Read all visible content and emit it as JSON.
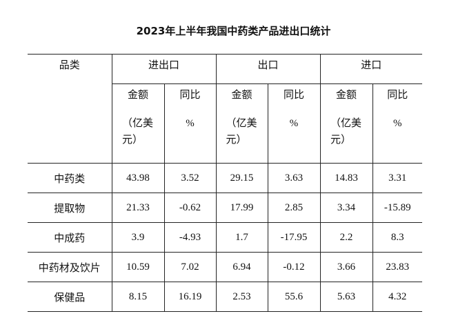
{
  "title": "2023年上半年我国中药类产品进出口统计",
  "table": {
    "corner": "品类",
    "groups": [
      "进出口",
      "出口",
      "进口"
    ],
    "subheaders": [
      {
        "label": "金额",
        "unit": "（亿美元）"
      },
      {
        "label": "同比",
        "unit": "%"
      },
      {
        "label": "金额",
        "unit": "（亿美元）"
      },
      {
        "label": "同比",
        "unit": "%"
      },
      {
        "label": "金额",
        "unit": "（亿美元）"
      },
      {
        "label": "同比",
        "unit": "%"
      }
    ],
    "rows": [
      [
        "中药类",
        "43.98",
        "3.52",
        "29.15",
        "3.63",
        "14.83",
        "3.31"
      ],
      [
        "提取物",
        "21.33",
        "-0.62",
        "17.99",
        "2.85",
        "3.34",
        "-15.89"
      ],
      [
        "中成药",
        "3.9",
        "-4.93",
        "1.7",
        "-17.95",
        "2.2",
        "8.3"
      ],
      [
        "中药材及饮片",
        "10.59",
        "7.02",
        "6.94",
        "-0.12",
        "3.66",
        "23.83"
      ],
      [
        "保健品",
        "8.15",
        "16.19",
        "2.53",
        "55.6",
        "5.63",
        "4.32"
      ]
    ]
  }
}
